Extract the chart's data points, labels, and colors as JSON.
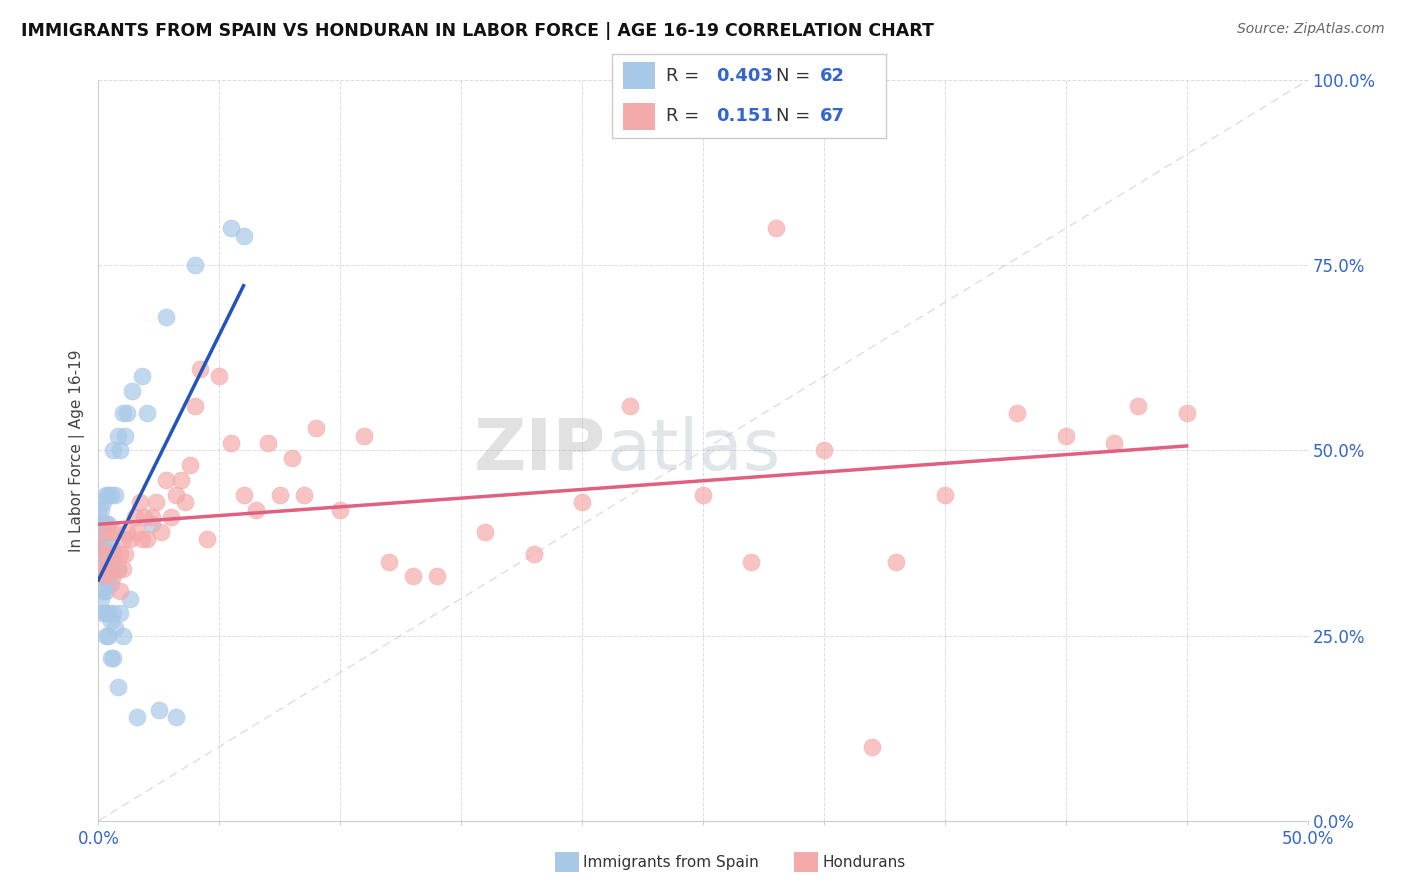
{
  "title": "IMMIGRANTS FROM SPAIN VS HONDURAN IN LABOR FORCE | AGE 16-19 CORRELATION CHART",
  "source": "Source: ZipAtlas.com",
  "ylabel_label": "In Labor Force | Age 16-19",
  "legend_label_1": "Immigrants from Spain",
  "legend_label_2": "Hondurans",
  "r1": "0.403",
  "n1": "62",
  "r2": "0.151",
  "n2": "67",
  "color_spain": "#A8C8E8",
  "color_honduran": "#F4AAAA",
  "color_spain_line": "#2255BB",
  "color_honduran_line": "#E06080",
  "watermark_zip": "ZIP",
  "watermark_atlas": "atlas",
  "xlim": [
    0.0,
    0.5
  ],
  "ylim": [
    0.0,
    1.0
  ],
  "spain_x": [
    0.0,
    0.0,
    0.0,
    0.0,
    0.0,
    0.001,
    0.001,
    0.001,
    0.001,
    0.001,
    0.002,
    0.002,
    0.002,
    0.002,
    0.002,
    0.002,
    0.003,
    0.003,
    0.003,
    0.003,
    0.003,
    0.003,
    0.003,
    0.004,
    0.004,
    0.004,
    0.004,
    0.004,
    0.004,
    0.005,
    0.005,
    0.005,
    0.005,
    0.005,
    0.006,
    0.006,
    0.006,
    0.006,
    0.007,
    0.007,
    0.007,
    0.008,
    0.008,
    0.008,
    0.009,
    0.009,
    0.01,
    0.01,
    0.011,
    0.012,
    0.013,
    0.014,
    0.016,
    0.018,
    0.02,
    0.022,
    0.025,
    0.028,
    0.032,
    0.04,
    0.055,
    0.06
  ],
  "spain_y": [
    0.34,
    0.36,
    0.38,
    0.4,
    0.42,
    0.3,
    0.33,
    0.36,
    0.39,
    0.42,
    0.28,
    0.31,
    0.34,
    0.37,
    0.4,
    0.43,
    0.25,
    0.28,
    0.31,
    0.34,
    0.37,
    0.4,
    0.44,
    0.25,
    0.28,
    0.32,
    0.36,
    0.4,
    0.44,
    0.22,
    0.27,
    0.32,
    0.37,
    0.44,
    0.22,
    0.28,
    0.36,
    0.5,
    0.26,
    0.34,
    0.44,
    0.18,
    0.34,
    0.52,
    0.28,
    0.5,
    0.25,
    0.55,
    0.52,
    0.55,
    0.3,
    0.58,
    0.14,
    0.6,
    0.55,
    0.4,
    0.15,
    0.68,
    0.14,
    0.75,
    0.8,
    0.79
  ],
  "honduran_x": [
    0.0,
    0.001,
    0.002,
    0.003,
    0.003,
    0.004,
    0.005,
    0.005,
    0.006,
    0.007,
    0.007,
    0.008,
    0.009,
    0.009,
    0.01,
    0.01,
    0.011,
    0.012,
    0.013,
    0.015,
    0.016,
    0.017,
    0.018,
    0.019,
    0.02,
    0.022,
    0.024,
    0.026,
    0.028,
    0.03,
    0.032,
    0.034,
    0.036,
    0.038,
    0.04,
    0.042,
    0.045,
    0.05,
    0.055,
    0.06,
    0.065,
    0.07,
    0.075,
    0.08,
    0.085,
    0.09,
    0.1,
    0.11,
    0.12,
    0.13,
    0.14,
    0.16,
    0.18,
    0.2,
    0.22,
    0.25,
    0.27,
    0.3,
    0.33,
    0.35,
    0.38,
    0.4,
    0.42,
    0.43,
    0.45,
    0.28,
    0.32
  ],
  "honduran_y": [
    0.37,
    0.34,
    0.33,
    0.39,
    0.36,
    0.34,
    0.39,
    0.36,
    0.33,
    0.39,
    0.36,
    0.34,
    0.36,
    0.31,
    0.38,
    0.34,
    0.36,
    0.39,
    0.38,
    0.41,
    0.39,
    0.43,
    0.38,
    0.41,
    0.38,
    0.41,
    0.43,
    0.39,
    0.46,
    0.41,
    0.44,
    0.46,
    0.43,
    0.48,
    0.56,
    0.61,
    0.38,
    0.6,
    0.51,
    0.44,
    0.42,
    0.51,
    0.44,
    0.49,
    0.44,
    0.53,
    0.42,
    0.52,
    0.35,
    0.33,
    0.33,
    0.39,
    0.36,
    0.43,
    0.56,
    0.44,
    0.35,
    0.5,
    0.35,
    0.44,
    0.55,
    0.52,
    0.51,
    0.56,
    0.55,
    0.8,
    0.1
  ]
}
